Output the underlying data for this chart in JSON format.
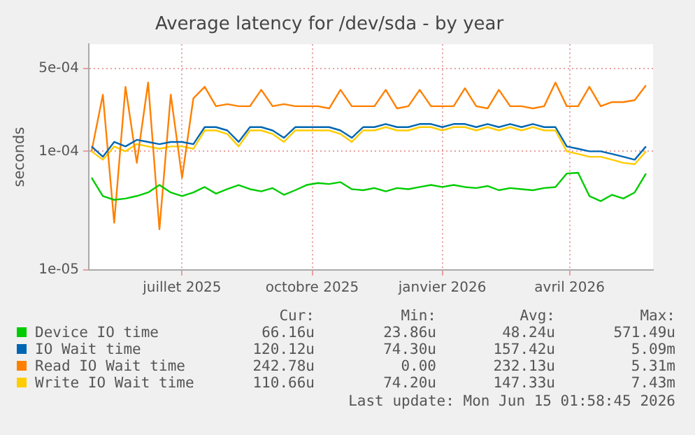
{
  "chart_data": {
    "type": "line",
    "title": "Average latency for /dev/sda - by year",
    "ylabel": "seconds",
    "log": "y",
    "grid": true,
    "legend": "bottom",
    "marker": "none",
    "line_style": "solid",
    "xlim": [
      "2025-04-26",
      "2026-05-30"
    ],
    "xticks": [
      {
        "value": "2025-07-01",
        "label": "juillet 2025"
      },
      {
        "value": "2025-10-01",
        "label": "octobre 2025"
      },
      {
        "value": "2026-01-01",
        "label": "janvier 2026"
      },
      {
        "value": "2026-04-01",
        "label": "avril 2026"
      }
    ],
    "ylim": [
      1e-05,
      0.0008
    ],
    "yticks": [
      {
        "value": 1e-05,
        "label": "1e-05"
      },
      {
        "value": 0.0001,
        "label": "1e-04"
      },
      {
        "value": 0.0005,
        "label": "5e-04"
      }
    ],
    "x": [
      "2025-04-28",
      "2025-05-06",
      "2025-05-14",
      "2025-05-22",
      "2025-05-30",
      "2025-06-07",
      "2025-06-15",
      "2025-06-23",
      "2025-07-01",
      "2025-07-09",
      "2025-07-17",
      "2025-07-25",
      "2025-08-02",
      "2025-08-10",
      "2025-08-18",
      "2025-08-26",
      "2025-09-03",
      "2025-09-11",
      "2025-09-19",
      "2025-09-27",
      "2025-10-05",
      "2025-10-13",
      "2025-10-21",
      "2025-10-29",
      "2025-11-06",
      "2025-11-14",
      "2025-11-22",
      "2025-11-30",
      "2025-12-08",
      "2025-12-16",
      "2025-12-24",
      "2026-01-01",
      "2026-01-09",
      "2026-01-17",
      "2026-01-25",
      "2026-02-02",
      "2026-02-10",
      "2026-02-18",
      "2026-02-26",
      "2026-03-06",
      "2026-03-14",
      "2026-03-22",
      "2026-03-30",
      "2026-04-07",
      "2026-04-15",
      "2026-04-23",
      "2026-05-01",
      "2026-05-09",
      "2026-05-17",
      "2026-05-25"
    ],
    "series": [
      {
        "name": "Device IO time",
        "color": "#00cc00",
        "values": [
          6e-05,
          4.2e-05,
          3.9e-05,
          4e-05,
          4.2e-05,
          4.5e-05,
          5.2e-05,
          4.5e-05,
          4.2e-05,
          4.5e-05,
          5e-05,
          4.4e-05,
          4.8e-05,
          5.2e-05,
          4.8e-05,
          4.6e-05,
          4.9e-05,
          4.3e-05,
          4.7e-05,
          5.2e-05,
          5.4e-05,
          5.3e-05,
          5.5e-05,
          4.8e-05,
          4.7e-05,
          4.9e-05,
          4.6e-05,
          4.9e-05,
          4.8e-05,
          5e-05,
          5.2e-05,
          5e-05,
          5.2e-05,
          5e-05,
          4.9e-05,
          5.1e-05,
          4.7e-05,
          4.9e-05,
          4.8e-05,
          4.7e-05,
          4.9e-05,
          5e-05,
          6.5e-05,
          6.6e-05,
          4.2e-05,
          3.8e-05,
          4.3e-05,
          4e-05,
          4.5e-05,
          6.5e-05
        ]
      },
      {
        "name": "IO Wait time",
        "color": "#0066b3",
        "values": [
          0.00011,
          9e-05,
          0.00012,
          0.00011,
          0.000125,
          0.00012,
          0.000115,
          0.00012,
          0.00012,
          0.000115,
          0.00016,
          0.00016,
          0.00015,
          0.00012,
          0.00016,
          0.00016,
          0.00015,
          0.00013,
          0.00016,
          0.00016,
          0.00016,
          0.00016,
          0.00015,
          0.00013,
          0.00016,
          0.00016,
          0.00017,
          0.00016,
          0.00016,
          0.00017,
          0.00017,
          0.00016,
          0.00017,
          0.00017,
          0.00016,
          0.00017,
          0.00016,
          0.00017,
          0.00016,
          0.00017,
          0.00016,
          0.00016,
          0.00011,
          0.000105,
          0.0001,
          0.0001,
          9.5e-05,
          9e-05,
          8.5e-05,
          0.00011
        ]
      },
      {
        "name": "Read IO Wait time",
        "color": "#ff8000",
        "values": [
          0.0001,
          0.0003,
          2.5e-05,
          0.00035,
          8e-05,
          0.00038,
          2.2e-05,
          0.0003,
          6e-05,
          0.00028,
          0.00035,
          0.00024,
          0.00025,
          0.00024,
          0.00024,
          0.00033,
          0.00024,
          0.00025,
          0.00024,
          0.00024,
          0.00024,
          0.00023,
          0.00033,
          0.00024,
          0.00024,
          0.00024,
          0.00033,
          0.00023,
          0.00024,
          0.00033,
          0.00024,
          0.00024,
          0.00024,
          0.00034,
          0.00024,
          0.00023,
          0.00033,
          0.00024,
          0.00024,
          0.00023,
          0.00024,
          0.00038,
          0.00024,
          0.00024,
          0.00035,
          0.00024,
          0.00026,
          0.00026,
          0.00027,
          0.00036
        ]
      },
      {
        "name": "Write IO Wait time",
        "color": "#ffcc00",
        "values": [
          0.0001,
          8.5e-05,
          0.00011,
          0.0001,
          0.000115,
          0.00011,
          0.000105,
          0.00011,
          0.00011,
          0.000105,
          0.00015,
          0.00015,
          0.00014,
          0.00011,
          0.00015,
          0.00015,
          0.00014,
          0.00012,
          0.00015,
          0.00015,
          0.00015,
          0.00015,
          0.00014,
          0.00012,
          0.00015,
          0.00015,
          0.00016,
          0.00015,
          0.00015,
          0.00016,
          0.00016,
          0.00015,
          0.00016,
          0.00016,
          0.00015,
          0.00016,
          0.00015,
          0.00016,
          0.00015,
          0.00016,
          0.00015,
          0.00015,
          0.0001,
          9.5e-05,
          9e-05,
          9e-05,
          8.5e-05,
          8e-05,
          7.8e-05,
          0.0001
        ]
      }
    ],
    "annotations": [
      "Cur:",
      "Min:",
      "Avg:",
      "Max:",
      "66.16u",
      "23.86u",
      "48.24u",
      "571.49u",
      "120.12u",
      "74.30u",
      "157.42u",
      "5.09m",
      "242.78u",
      "0.00",
      "232.13u",
      "5.31m",
      "110.66u",
      "74.20u",
      "147.33u",
      "7.43m",
      "Last update: Mon Jun 15 01:58:45 2026"
    ]
  }
}
